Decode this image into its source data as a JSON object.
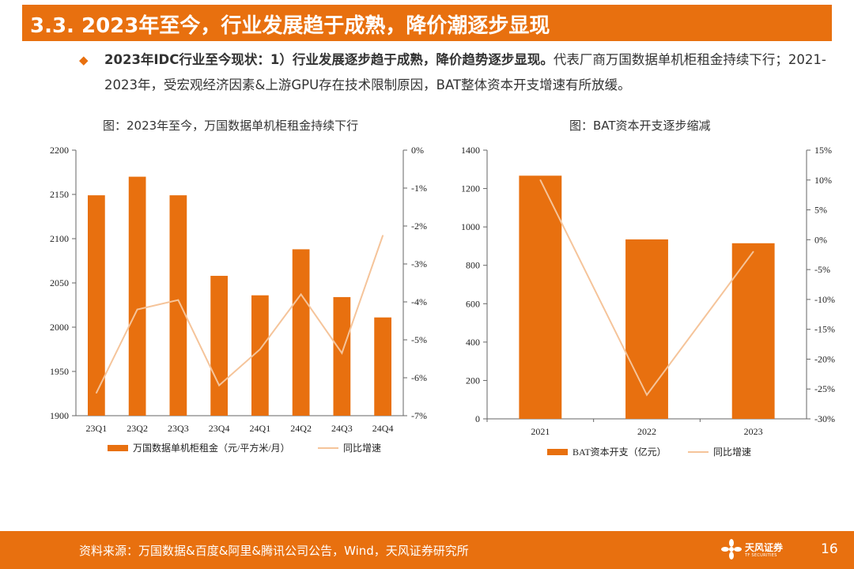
{
  "slide": {
    "title": "3.3. 2023年至今，行业发展趋于成熟，降价潮逐步显现",
    "bullet_bold": "2023年IDC行业至今现状：1）行业发展逐步趋于成熟，降价趋势逐步显现。",
    "bullet_rest": "代表厂商万国数据单机柜租金持续下行；2021-2023年，受宏观经济因素&上游GPU存在技术限制原因，BAT整体资本开支增速有所放缓。",
    "source": "资料来源：万国数据&百度&阿里&腾讯公司公告，Wind，天风证券研究所",
    "logo_cn": "天风证券",
    "logo_en": "TF SECURITIES",
    "page_number": "16"
  },
  "colors": {
    "brand": "#E8700F",
    "bar": "#E8700F",
    "line": "#F5C49A"
  },
  "chart_data": [
    {
      "type": "bar",
      "title": "图：2023年至今，万国数据单机柜租金持续下行",
      "categories": [
        "23Q1",
        "23Q2",
        "23Q3",
        "23Q4",
        "24Q1",
        "24Q2",
        "24Q3",
        "24Q4"
      ],
      "series": [
        {
          "name": "万国数据单机柜租金（元/平方米/月）",
          "kind": "bar",
          "axis": "left",
          "values": [
            2149,
            2170,
            2149,
            2058,
            2036,
            2088,
            2034,
            2011
          ]
        },
        {
          "name": "同比增速",
          "kind": "line",
          "axis": "right",
          "values": [
            -6.4,
            -4.2,
            -3.95,
            -6.2,
            -5.25,
            -3.8,
            -5.35,
            -2.25
          ]
        }
      ],
      "ylim_left": [
        1900,
        2200
      ],
      "yticks_left": [
        1900,
        1950,
        2000,
        2050,
        2100,
        2150,
        2200
      ],
      "ylim_right": [
        -7,
        0
      ],
      "yticks_right": [
        "-7%",
        "-6%",
        "-5%",
        "-4%",
        "-3%",
        "-2%",
        "-1%",
        "0%"
      ],
      "grid": false,
      "legend_position": "bottom"
    },
    {
      "type": "bar",
      "title": "图：BAT资本开支逐步缩减",
      "categories": [
        "2021",
        "2022",
        "2023"
      ],
      "series": [
        {
          "name": "BAT资本开支（亿元）",
          "kind": "bar",
          "axis": "left",
          "values": [
            1267,
            935,
            915
          ]
        },
        {
          "name": "同比增速",
          "kind": "line",
          "axis": "right",
          "values": [
            10,
            -26,
            -2
          ]
        }
      ],
      "ylim_left": [
        0,
        1400
      ],
      "yticks_left": [
        0,
        200,
        400,
        600,
        800,
        1000,
        1200,
        1400
      ],
      "ylim_right": [
        -30,
        15
      ],
      "yticks_right": [
        "-30%",
        "-25%",
        "-20%",
        "-15%",
        "-10%",
        "-5%",
        "0%",
        "5%",
        "10%",
        "15%"
      ],
      "grid": false,
      "legend_position": "bottom"
    }
  ]
}
